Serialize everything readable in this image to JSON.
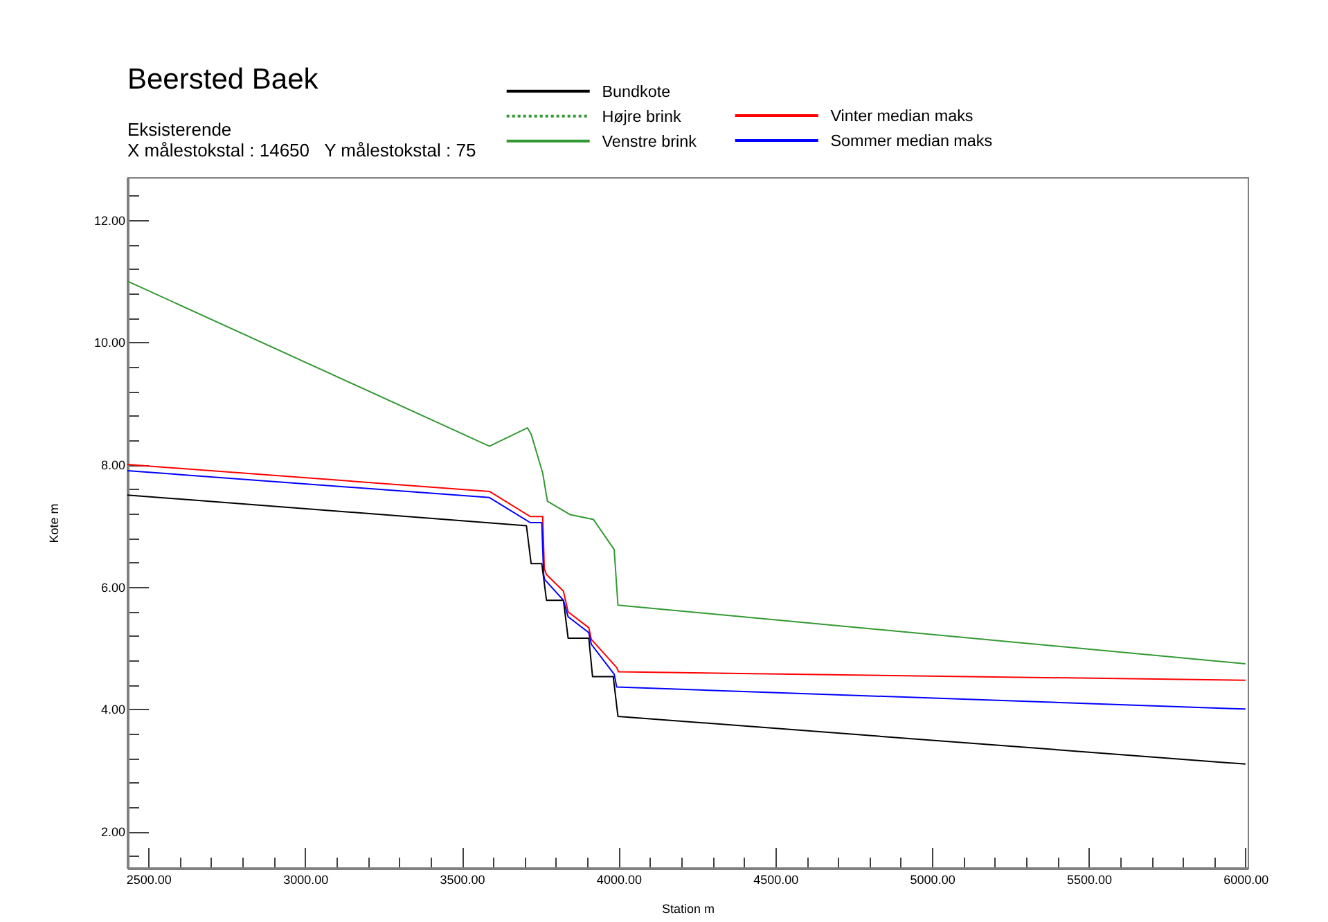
{
  "chart_data": {
    "type": "line",
    "title": "Beersted Baek",
    "subtitle": "Eksisterende\nX målestokstal : 14650   Y målestokstal : 75",
    "xlabel": "Station m",
    "ylabel": "Kote m",
    "xlim": [
      2433,
      6007
    ],
    "ylim": [
      1.4,
      12.7
    ],
    "xticks": [
      {
        "value": 2500,
        "label": "2500.00"
      },
      {
        "value": 2600,
        "label": null
      },
      {
        "value": 2700,
        "label": null
      },
      {
        "value": 2800,
        "label": null
      },
      {
        "value": 2900,
        "label": null
      },
      {
        "value": 3000,
        "label": "3000.00"
      },
      {
        "value": 3100,
        "label": null
      },
      {
        "value": 3200,
        "label": null
      },
      {
        "value": 3300,
        "label": null
      },
      {
        "value": 3400,
        "label": null
      },
      {
        "value": 3500,
        "label": "3500.00"
      },
      {
        "value": 3600,
        "label": null
      },
      {
        "value": 3700,
        "label": null
      },
      {
        "value": 3800,
        "label": null
      },
      {
        "value": 3900,
        "label": null
      },
      {
        "value": 4000,
        "label": "4000.00"
      },
      {
        "value": 4100,
        "label": null
      },
      {
        "value": 4200,
        "label": null
      },
      {
        "value": 4300,
        "label": null
      },
      {
        "value": 4400,
        "label": null
      },
      {
        "value": 4500,
        "label": "4500.00"
      },
      {
        "value": 4600,
        "label": null
      },
      {
        "value": 4700,
        "label": null
      },
      {
        "value": 4800,
        "label": null
      },
      {
        "value": 4900,
        "label": null
      },
      {
        "value": 5000,
        "label": "5000.00"
      },
      {
        "value": 5100,
        "label": null
      },
      {
        "value": 5200,
        "label": null
      },
      {
        "value": 5300,
        "label": null
      },
      {
        "value": 5400,
        "label": null
      },
      {
        "value": 5500,
        "label": "5500.00"
      },
      {
        "value": 5600,
        "label": null
      },
      {
        "value": 5700,
        "label": null
      },
      {
        "value": 5800,
        "label": null
      },
      {
        "value": 5900,
        "label": null
      },
      {
        "value": 6000,
        "label": "6000.00"
      }
    ],
    "yticks": [
      {
        "value": 1.6,
        "label": null
      },
      {
        "value": 2,
        "label": "2.00"
      },
      {
        "value": 2.4,
        "label": null
      },
      {
        "value": 2.8,
        "label": null
      },
      {
        "value": 3.2,
        "label": null
      },
      {
        "value": 3.6,
        "label": null
      },
      {
        "value": 4,
        "label": "4.00"
      },
      {
        "value": 4.4,
        "label": null
      },
      {
        "value": 4.8,
        "label": null
      },
      {
        "value": 5.2,
        "label": null
      },
      {
        "value": 5.6,
        "label": null
      },
      {
        "value": 6,
        "label": "6.00"
      },
      {
        "value": 6.4,
        "label": null
      },
      {
        "value": 6.8,
        "label": null
      },
      {
        "value": 7.2,
        "label": null
      },
      {
        "value": 7.6,
        "label": null
      },
      {
        "value": 8,
        "label": "8.00"
      },
      {
        "value": 8.4,
        "label": null
      },
      {
        "value": 8.8,
        "label": null
      },
      {
        "value": 9.2,
        "label": null
      },
      {
        "value": 9.6,
        "label": null
      },
      {
        "value": 10,
        "label": "10.00"
      },
      {
        "value": 10.4,
        "label": null
      },
      {
        "value": 10.8,
        "label": null
      },
      {
        "value": 11.2,
        "label": null
      },
      {
        "value": 11.6,
        "label": null
      },
      {
        "value": 12,
        "label": "12.00"
      },
      {
        "value": 12.4,
        "label": null
      }
    ],
    "legend": "top",
    "line_style": "solid",
    "series": [
      {
        "name": "Bundkote",
        "color": "#000000",
        "x": [
          2433,
          3706,
          3721,
          3755,
          3770,
          3824,
          3839,
          3905,
          3917,
          3983,
          3998,
          6000
        ],
        "values": [
          7.5,
          7.0,
          6.38,
          6.38,
          5.78,
          5.78,
          5.16,
          5.16,
          4.53,
          4.53,
          3.88,
          3.1
        ]
      },
      {
        "name": "Højre brink",
        "color": "#339933",
        "line_style": "dotted"
      },
      {
        "name": "Venstre brink",
        "color": "#339933",
        "x": [
          2433,
          3588,
          3709,
          3721,
          3758,
          3773,
          3846,
          3920,
          3986,
          3998,
          6000
        ],
        "values": [
          11.0,
          8.3,
          8.6,
          8.5,
          7.86,
          7.4,
          7.18,
          7.1,
          6.61,
          5.7,
          4.74
        ]
      },
      {
        "name": "Vinter median maks",
        "color": "#ff0000",
        "x": [
          2433,
          3588,
          3718,
          3758,
          3763,
          3770,
          3824,
          3839,
          3905,
          3913,
          3994,
          4000,
          6000
        ],
        "values": [
          8.0,
          7.56,
          7.15,
          7.15,
          6.3,
          6.2,
          5.93,
          5.59,
          5.33,
          5.14,
          4.68,
          4.61,
          4.47
        ]
      },
      {
        "name": "Sommer median maks",
        "color": "#0000ff",
        "x": [
          2433,
          3588,
          3718,
          3755,
          3761,
          3764,
          3824,
          3839,
          3905,
          3913,
          3986,
          3994,
          6000
        ],
        "values": [
          7.9,
          7.46,
          7.05,
          7.05,
          6.2,
          6.12,
          5.78,
          5.51,
          5.25,
          5.06,
          4.57,
          4.36,
          4.0
        ]
      }
    ]
  }
}
